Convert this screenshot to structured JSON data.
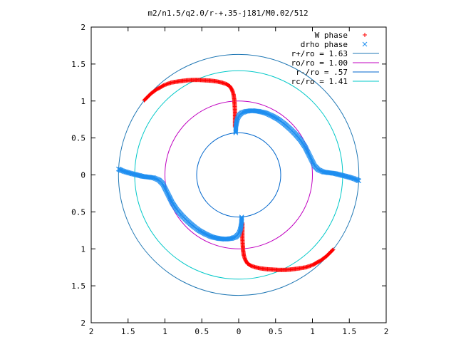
{
  "chart_data": {
    "type": "scatter",
    "title": "m2/n1.5/q2.0/r-+.35-j181/M0.02/512",
    "xlim": [
      -2,
      2
    ],
    "ylim": [
      -2,
      2
    ],
    "x_tick_values": [
      -2,
      -1.5,
      -1,
      -0.5,
      0,
      0.5,
      1,
      1.5,
      2
    ],
    "x_tick_labels": [
      "2",
      "1.5",
      "1",
      "0.5",
      "0",
      "0.5",
      "1",
      "1.5",
      "2"
    ],
    "y_tick_values": [
      2,
      1.5,
      1,
      0.5,
      0,
      -0.5,
      -1,
      -1.5,
      -2
    ],
    "y_tick_labels": [
      "2",
      "1.5",
      "1",
      "0.5",
      "0",
      "0.5",
      "1",
      "1.5",
      "2"
    ],
    "grid": false,
    "legend_position": "top-right",
    "circles": [
      {
        "name": "r+/ro = 1.63",
        "radius": 1.63,
        "color": "#1f77b4"
      },
      {
        "name": "ro/ro = 1.00",
        "radius": 1.0,
        "color": "#c000c0"
      },
      {
        "name": "r-/ro = .57",
        "radius": 0.57,
        "color": "#0066cc"
      },
      {
        "name": "rc/ro = 1.41",
        "radius": 1.41,
        "color": "#00c8c8"
      }
    ],
    "series": [
      {
        "name": "W phase",
        "marker": "+",
        "color": "#ff0000",
        "points": [
          [
            -1.28,
            1.01
          ],
          [
            -1.25,
            1.04
          ],
          [
            -1.22,
            1.07
          ],
          [
            -1.19,
            1.1
          ],
          [
            -1.15,
            1.13
          ],
          [
            -1.11,
            1.16
          ],
          [
            -1.07,
            1.18
          ],
          [
            -1.02,
            1.21
          ],
          [
            -0.97,
            1.23
          ],
          [
            -0.91,
            1.25
          ],
          [
            -0.85,
            1.26
          ],
          [
            -0.78,
            1.27
          ],
          [
            -0.7,
            1.28
          ],
          [
            -0.62,
            1.285
          ],
          [
            -0.54,
            1.285
          ],
          [
            -0.46,
            1.28
          ],
          [
            -0.38,
            1.275
          ],
          [
            -0.3,
            1.265
          ],
          [
            -0.23,
            1.25
          ],
          [
            -0.17,
            1.23
          ],
          [
            -0.12,
            1.2
          ],
          [
            -0.09,
            1.15
          ],
          [
            -0.07,
            1.09
          ],
          [
            -0.06,
            1.02
          ],
          [
            -0.055,
            0.95
          ],
          [
            -0.05,
            0.85
          ],
          [
            -0.05,
            0.75
          ],
          [
            -0.05,
            0.65
          ],
          [
            1.28,
            -1.01
          ],
          [
            1.25,
            -1.04
          ],
          [
            1.22,
            -1.07
          ],
          [
            1.19,
            -1.1
          ],
          [
            1.15,
            -1.13
          ],
          [
            1.11,
            -1.16
          ],
          [
            1.07,
            -1.18
          ],
          [
            1.02,
            -1.21
          ],
          [
            0.97,
            -1.23
          ],
          [
            0.91,
            -1.25
          ],
          [
            0.85,
            -1.26
          ],
          [
            0.78,
            -1.27
          ],
          [
            0.7,
            -1.28
          ],
          [
            0.62,
            -1.285
          ],
          [
            0.54,
            -1.285
          ],
          [
            0.46,
            -1.28
          ],
          [
            0.38,
            -1.275
          ],
          [
            0.3,
            -1.265
          ],
          [
            0.23,
            -1.25
          ],
          [
            0.17,
            -1.23
          ],
          [
            0.12,
            -1.2
          ],
          [
            0.09,
            -1.15
          ],
          [
            0.07,
            -1.09
          ],
          [
            0.06,
            -1.02
          ],
          [
            0.055,
            -0.95
          ],
          [
            0.05,
            -0.85
          ],
          [
            0.05,
            -0.75
          ],
          [
            0.05,
            -0.65
          ]
        ]
      },
      {
        "name": "drho phase",
        "marker": "x",
        "color": "#1e8ef0",
        "points": [
          [
            -0.04,
            0.57
          ],
          [
            -0.04,
            0.62
          ],
          [
            -0.035,
            0.68
          ],
          [
            -0.02,
            0.75
          ],
          [
            0.0,
            0.8
          ],
          [
            0.04,
            0.84
          ],
          [
            0.1,
            0.86
          ],
          [
            0.18,
            0.87
          ],
          [
            0.27,
            0.86
          ],
          [
            0.36,
            0.84
          ],
          [
            0.45,
            0.8
          ],
          [
            0.54,
            0.75
          ],
          [
            0.62,
            0.69
          ],
          [
            0.7,
            0.62
          ],
          [
            0.77,
            0.55
          ],
          [
            0.84,
            0.47
          ],
          [
            0.9,
            0.38
          ],
          [
            0.95,
            0.28
          ],
          [
            0.99,
            0.2
          ],
          [
            1.03,
            0.12
          ],
          [
            1.08,
            0.07
          ],
          [
            1.15,
            0.04
          ],
          [
            1.22,
            0.03
          ],
          [
            1.3,
            0.02
          ],
          [
            1.38,
            0.0
          ],
          [
            1.46,
            -0.02
          ],
          [
            1.53,
            -0.04
          ],
          [
            1.59,
            -0.06
          ],
          [
            1.63,
            -0.08
          ],
          [
            0.04,
            -0.57
          ],
          [
            0.04,
            -0.62
          ],
          [
            0.035,
            -0.68
          ],
          [
            0.02,
            -0.75
          ],
          [
            0.0,
            -0.8
          ],
          [
            -0.04,
            -0.84
          ],
          [
            -0.1,
            -0.86
          ],
          [
            -0.18,
            -0.87
          ],
          [
            -0.27,
            -0.86
          ],
          [
            -0.36,
            -0.84
          ],
          [
            -0.45,
            -0.8
          ],
          [
            -0.54,
            -0.75
          ],
          [
            -0.62,
            -0.69
          ],
          [
            -0.7,
            -0.62
          ],
          [
            -0.77,
            -0.55
          ],
          [
            -0.84,
            -0.47
          ],
          [
            -0.9,
            -0.38
          ],
          [
            -0.95,
            -0.28
          ],
          [
            -0.99,
            -0.2
          ],
          [
            -1.03,
            -0.12
          ],
          [
            -1.08,
            -0.07
          ],
          [
            -1.15,
            -0.04
          ],
          [
            -1.22,
            -0.03
          ],
          [
            -1.3,
            -0.02
          ],
          [
            -1.38,
            0.0
          ],
          [
            -1.46,
            0.02
          ],
          [
            -1.53,
            0.04
          ],
          [
            -1.59,
            0.06
          ],
          [
            -1.63,
            0.08
          ]
        ]
      }
    ]
  }
}
